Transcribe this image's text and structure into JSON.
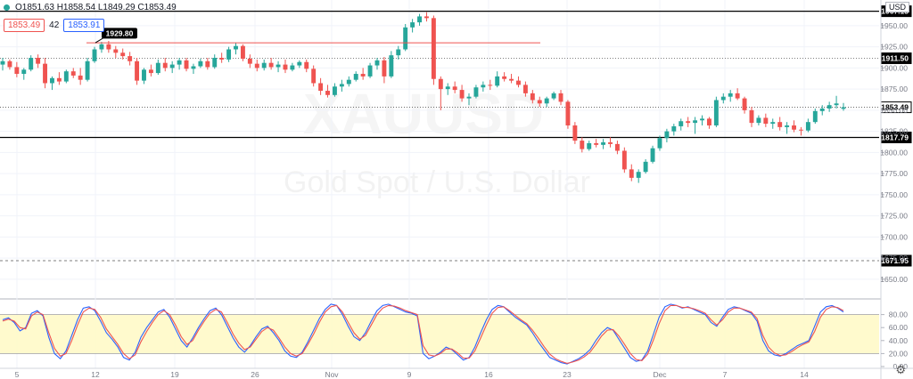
{
  "header": {
    "ohlc": "O1851.63 H1858.54 L1849.29 C1853.49",
    "bid": "1853.49",
    "spread": "42",
    "ask": "1853.91",
    "currency": "USD",
    "up_color": "#26a69a",
    "down_color": "#ef5350"
  },
  "watermark": {
    "symbol": "XAUUSD",
    "name": "Gold Spot / U.S. Dollar"
  },
  "chart_data": [
    {
      "type": "candlestick",
      "yaxis_ticks": [
        1650,
        1675,
        1700,
        1725,
        1750,
        1775,
        1800,
        1825,
        1850,
        1875,
        1900,
        1925,
        1950
      ],
      "ylim": [
        1633,
        1972
      ],
      "x_tick_labels": [
        "5",
        "12",
        "19",
        "26",
        "Nov",
        "9",
        "16",
        "23",
        "Dec",
        "7",
        "14"
      ],
      "horizontal_levels": [
        {
          "label": "1967.13",
          "style": "solid"
        },
        {
          "label": "1911.50",
          "style": "dotted"
        },
        {
          "label": "1853.49",
          "style": "dotted"
        },
        {
          "label": "1817.79",
          "style": "solid"
        },
        {
          "label": "1671.95",
          "style": "dashed"
        }
      ],
      "annotation": {
        "label": "1929.80",
        "color": "#ef5350"
      },
      "series": [
        [
          1904,
          1912,
          1897,
          1908
        ],
        [
          1908,
          1910,
          1898,
          1901
        ],
        [
          1901,
          1907,
          1889,
          1893
        ],
        [
          1893,
          1900,
          1886,
          1898
        ],
        [
          1898,
          1915,
          1896,
          1912
        ],
        [
          1912,
          1916,
          1900,
          1905
        ],
        [
          1905,
          1912,
          1876,
          1882
        ],
        [
          1882,
          1890,
          1874,
          1888
        ],
        [
          1888,
          1895,
          1880,
          1884
        ],
        [
          1884,
          1898,
          1882,
          1896
        ],
        [
          1896,
          1900,
          1888,
          1891
        ],
        [
          1891,
          1900,
          1880,
          1886
        ],
        [
          1886,
          1912,
          1884,
          1908
        ],
        [
          1908,
          1925,
          1906,
          1922
        ],
        [
          1922,
          1931,
          1918,
          1928
        ],
        [
          1928,
          1932,
          1918,
          1922
        ],
        [
          1922,
          1926,
          1912,
          1918
        ],
        [
          1918,
          1923,
          1910,
          1914
        ],
        [
          1914,
          1919,
          1903,
          1908
        ],
        [
          1908,
          1912,
          1880,
          1885
        ],
        [
          1885,
          1900,
          1881,
          1898
        ],
        [
          1898,
          1904,
          1890,
          1894
        ],
        [
          1894,
          1910,
          1892,
          1906
        ],
        [
          1906,
          1912,
          1896,
          1900
        ],
        [
          1900,
          1908,
          1894,
          1904
        ],
        [
          1904,
          1912,
          1898,
          1909
        ],
        [
          1909,
          1912,
          1896,
          1899
        ],
        [
          1899,
          1905,
          1893,
          1902
        ],
        [
          1902,
          1911,
          1900,
          1908
        ],
        [
          1908,
          1912,
          1898,
          1901
        ],
        [
          1901,
          1916,
          1899,
          1912
        ],
        [
          1912,
          1918,
          1906,
          1910
        ],
        [
          1910,
          1925,
          1907,
          1922
        ],
        [
          1922,
          1930,
          1916,
          1926
        ],
        [
          1926,
          1928,
          1908,
          1911
        ],
        [
          1911,
          1916,
          1900,
          1905
        ],
        [
          1905,
          1910,
          1896,
          1900
        ],
        [
          1900,
          1910,
          1897,
          1906
        ],
        [
          1906,
          1912,
          1898,
          1901
        ],
        [
          1901,
          1908,
          1895,
          1904
        ],
        [
          1904,
          1910,
          1894,
          1898
        ],
        [
          1898,
          1906,
          1896,
          1903
        ],
        [
          1903,
          1909,
          1900,
          1907
        ],
        [
          1907,
          1910,
          1895,
          1899
        ],
        [
          1899,
          1903,
          1878,
          1882
        ],
        [
          1882,
          1888,
          1868,
          1873
        ],
        [
          1873,
          1880,
          1865,
          1868
        ],
        [
          1868,
          1882,
          1866,
          1878
        ],
        [
          1878,
          1886,
          1872,
          1881
        ],
        [
          1881,
          1890,
          1878,
          1886
        ],
        [
          1886,
          1896,
          1884,
          1893
        ],
        [
          1893,
          1900,
          1886,
          1890
        ],
        [
          1890,
          1906,
          1888,
          1903
        ],
        [
          1903,
          1912,
          1898,
          1909
        ],
        [
          1909,
          1913,
          1882,
          1890
        ],
        [
          1890,
          1920,
          1888,
          1915
        ],
        [
          1915,
          1926,
          1910,
          1922
        ],
        [
          1922,
          1952,
          1920,
          1948
        ],
        [
          1948,
          1958,
          1942,
          1954
        ],
        [
          1954,
          1964,
          1950,
          1961
        ],
        [
          1961,
          1966,
          1955,
          1959
        ],
        [
          1959,
          1962,
          1880,
          1887
        ],
        [
          1887,
          1890,
          1850,
          1875
        ],
        [
          1875,
          1882,
          1868,
          1878
        ],
        [
          1878,
          1884,
          1870,
          1874
        ],
        [
          1874,
          1880,
          1860,
          1864
        ],
        [
          1864,
          1870,
          1856,
          1866
        ],
        [
          1866,
          1880,
          1864,
          1877
        ],
        [
          1877,
          1884,
          1872,
          1880
        ],
        [
          1880,
          1886,
          1874,
          1879
        ],
        [
          1879,
          1896,
          1877,
          1890
        ],
        [
          1890,
          1895,
          1884,
          1887
        ],
        [
          1887,
          1893,
          1882,
          1885
        ],
        [
          1885,
          1890,
          1877,
          1880
        ],
        [
          1880,
          1884,
          1866,
          1870
        ],
        [
          1870,
          1874,
          1858,
          1862
        ],
        [
          1862,
          1866,
          1854,
          1858
        ],
        [
          1858,
          1866,
          1854,
          1864
        ],
        [
          1864,
          1872,
          1862,
          1870
        ],
        [
          1870,
          1874,
          1856,
          1860
        ],
        [
          1860,
          1862,
          1828,
          1832
        ],
        [
          1832,
          1836,
          1810,
          1814
        ],
        [
          1814,
          1818,
          1800,
          1804
        ],
        [
          1804,
          1814,
          1802,
          1811
        ],
        [
          1811,
          1816,
          1806,
          1809
        ],
        [
          1809,
          1816,
          1804,
          1812
        ],
        [
          1812,
          1818,
          1806,
          1810
        ],
        [
          1810,
          1814,
          1798,
          1802
        ],
        [
          1802,
          1806,
          1776,
          1780
        ],
        [
          1780,
          1786,
          1766,
          1770
        ],
        [
          1770,
          1780,
          1764,
          1777
        ],
        [
          1777,
          1792,
          1775,
          1789
        ],
        [
          1789,
          1808,
          1787,
          1805
        ],
        [
          1805,
          1820,
          1802,
          1817
        ],
        [
          1817,
          1828,
          1812,
          1825
        ],
        [
          1825,
          1834,
          1820,
          1831
        ],
        [
          1831,
          1840,
          1826,
          1837
        ],
        [
          1837,
          1842,
          1830,
          1835
        ],
        [
          1835,
          1842,
          1822,
          1838
        ],
        [
          1838,
          1844,
          1832,
          1840
        ],
        [
          1840,
          1842,
          1828,
          1832
        ],
        [
          1832,
          1866,
          1830,
          1862
        ],
        [
          1862,
          1870,
          1858,
          1866
        ],
        [
          1866,
          1874,
          1860,
          1870
        ],
        [
          1870,
          1876,
          1862,
          1864
        ],
        [
          1864,
          1866,
          1846,
          1850
        ],
        [
          1850,
          1854,
          1830,
          1835
        ],
        [
          1835,
          1844,
          1832,
          1841
        ],
        [
          1841,
          1846,
          1830,
          1834
        ],
        [
          1834,
          1840,
          1828,
          1836
        ],
        [
          1836,
          1842,
          1826,
          1830
        ],
        [
          1830,
          1836,
          1822,
          1832
        ],
        [
          1832,
          1838,
          1824,
          1827
        ],
        [
          1827,
          1830,
          1820,
          1826
        ],
        [
          1826,
          1840,
          1824,
          1836
        ],
        [
          1836,
          1852,
          1834,
          1849
        ],
        [
          1849,
          1856,
          1844,
          1852
        ],
        [
          1852,
          1860,
          1848,
          1856
        ],
        [
          1856,
          1867,
          1852,
          1858
        ],
        [
          1851.63,
          1858.54,
          1849.29,
          1853.49
        ]
      ]
    },
    {
      "type": "line",
      "yaxis_ticks": [
        0,
        20,
        40,
        60,
        80
      ],
      "ylim": [
        0,
        100
      ],
      "bands": [
        20,
        80
      ],
      "series": [
        {
          "color": "#2962ff",
          "values": [
            72,
            75,
            68,
            55,
            60,
            82,
            86,
            78,
            45,
            20,
            12,
            24,
            48,
            72,
            90,
            92,
            86,
            70,
            52,
            42,
            30,
            14,
            10,
            22,
            45,
            60,
            72,
            84,
            88,
            76,
            58,
            40,
            30,
            44,
            60,
            74,
            86,
            90,
            80,
            62,
            44,
            30,
            22,
            32,
            46,
            58,
            62,
            52,
            40,
            24,
            16,
            14,
            22,
            38,
            56,
            74,
            88,
            96,
            94,
            80,
            62,
            46,
            40,
            52,
            70,
            86,
            94,
            96,
            92,
            88,
            84,
            82,
            78,
            20,
            12,
            16,
            22,
            30,
            26,
            18,
            10,
            14,
            30,
            52,
            72,
            88,
            94,
            92,
            84,
            76,
            70,
            64,
            52,
            38,
            26,
            14,
            10,
            6,
            4,
            8,
            12,
            18,
            26,
            40,
            52,
            60,
            56,
            42,
            28,
            14,
            8,
            10,
            24,
            50,
            76,
            92,
            96,
            94,
            90,
            92,
            88,
            84,
            80,
            68,
            62,
            76,
            88,
            92,
            90,
            86,
            82,
            70,
            40,
            24,
            18,
            16,
            20,
            26,
            32,
            36,
            40,
            62,
            84,
            92,
            94,
            90,
            84
          ]
        },
        {
          "color": "#ef5350",
          "values": [
            70,
            73,
            70,
            60,
            58,
            78,
            84,
            80,
            52,
            28,
            16,
            20,
            40,
            64,
            84,
            90,
            88,
            76,
            58,
            46,
            34,
            20,
            12,
            18,
            38,
            54,
            68,
            80,
            86,
            80,
            64,
            46,
            34,
            40,
            56,
            70,
            82,
            88,
            84,
            68,
            50,
            36,
            26,
            30,
            42,
            54,
            60,
            56,
            44,
            30,
            20,
            16,
            20,
            34,
            50,
            68,
            84,
            92,
            94,
            84,
            68,
            52,
            42,
            48,
            64,
            80,
            90,
            94,
            93,
            90,
            86,
            83,
            80,
            32,
            18,
            16,
            20,
            27,
            27,
            21,
            13,
            13,
            24,
            44,
            64,
            82,
            91,
            92,
            86,
            79,
            72,
            66,
            56,
            44,
            31,
            19,
            12,
            8,
            5,
            7,
            10,
            15,
            22,
            34,
            47,
            56,
            57,
            47,
            34,
            20,
            11,
            9,
            19,
            41,
            66,
            86,
            94,
            94,
            91,
            91,
            89,
            86,
            82,
            72,
            64,
            72,
            84,
            90,
            90,
            87,
            84,
            74,
            48,
            30,
            21,
            17,
            18,
            23,
            29,
            34,
            38,
            54,
            76,
            88,
            92,
            91,
            86
          ]
        }
      ]
    }
  ]
}
